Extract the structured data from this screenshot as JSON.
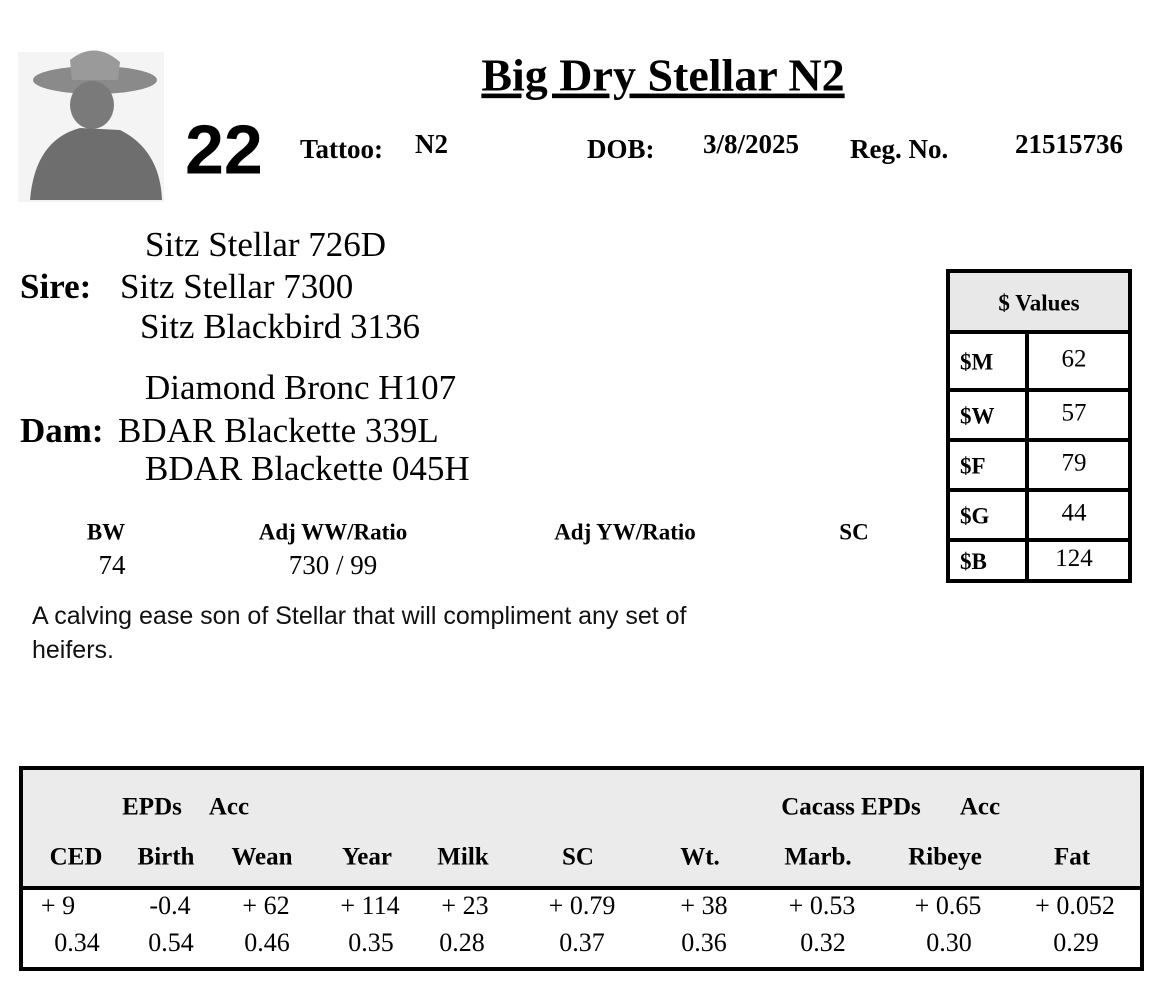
{
  "header": {
    "title": "Big Dry Stellar N2",
    "lot": "22",
    "tattoo_label": "Tattoo:",
    "tattoo": "N2",
    "dob_label": "DOB:",
    "dob": "3/8/2025",
    "reg_label": "Reg. No.",
    "reg": "21515736"
  },
  "pedigree": {
    "sire": {
      "label": "Sire:",
      "top": "Sitz Stellar 726D",
      "name": "Sitz Stellar 7300",
      "bottom": "Sitz Blackbird 3136"
    },
    "dam": {
      "label": "Dam:",
      "top": "Diamond Bronc H107",
      "name": "BDAR Blackette 339L",
      "bottom": "BDAR Blackette 045H"
    }
  },
  "performance": {
    "headers": [
      "BW",
      "Adj WW/Ratio",
      "Adj YW/Ratio",
      "SC"
    ],
    "values": [
      "74",
      "730 / 99"
    ]
  },
  "description": "A calving ease son of Stellar that will compliment any set of heifers.",
  "dollar_values": {
    "title": "$ Values",
    "rows": [
      [
        "$M",
        "62"
      ],
      [
        "$W",
        "57"
      ],
      [
        "$F",
        "79"
      ],
      [
        "$G",
        "44"
      ],
      [
        "$B",
        "124"
      ]
    ]
  },
  "epds": {
    "groups": [
      "EPDs",
      "Acc",
      "Cacass EPDs",
      "Acc"
    ],
    "columns": [
      "CED",
      "Birth",
      "Wean",
      "Year",
      "Milk",
      "SC",
      "Wt.",
      "Marb.",
      "Ribeye",
      "Fat"
    ],
    "values": [
      "+ 9",
      "-0.4",
      "+ 62",
      "+ 114",
      "+ 23",
      "+ 0.79",
      "+ 38",
      "+ 0.53",
      "+ 0.65",
      "+ 0.052"
    ],
    "accuracy": [
      "0.34",
      "0.54",
      "0.46",
      "0.35",
      "0.28",
      "0.37",
      "0.36",
      "0.32",
      "0.30",
      "0.29"
    ]
  }
}
